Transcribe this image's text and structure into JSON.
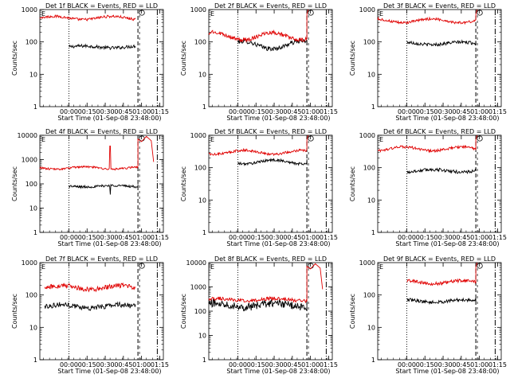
{
  "figure": {
    "xlabel": "Start Time (01-Sep-08 23:48:00)",
    "ylabel": "Counts/sec",
    "x_tick_labels": [
      "00:00",
      "00:15",
      "00:30",
      "00:45",
      "01:00",
      "01:15"
    ],
    "y_tick_labels": [
      "1",
      "10",
      "100",
      "1000",
      "10000"
    ]
  },
  "colors": {
    "events": "#000000",
    "lld": "#e00000",
    "background": "#ffffff"
  },
  "chart_data": [
    {
      "type": "line",
      "title": "Det 1f BLACK = Events, RED = LLD",
      "xlabel": "Start Time (01-Sep-08 23:48:00)",
      "ylabel": "Counts/sec",
      "xlim_minutes": [
        -12,
        90
      ],
      "ylim": [
        1,
        1000
      ],
      "y_scale": "log",
      "x_tick_minutes": [
        12,
        27,
        42,
        57,
        72,
        87
      ],
      "markers_minutes": {
        "dotted": 12,
        "dashed": 69,
        "dashdot": 85
      },
      "series": [
        {
          "name": "Events",
          "x_start": 12,
          "x_end": 67,
          "level": 70,
          "noise": 0.05,
          "wave": 0.03
        },
        {
          "name": "LLD",
          "x_start": -12,
          "x_end": 67,
          "level": 550,
          "noise": 0.04,
          "wave": 0.05
        }
      ],
      "annotations": {
        "after_dashed": false,
        "spike_minute": null
      }
    },
    {
      "type": "line",
      "title": "Det 2f BLACK = Events, RED = LLD",
      "xlabel": "Start Time (01-Sep-08 23:48:00)",
      "ylabel": "Counts/sec",
      "xlim_minutes": [
        -12,
        90
      ],
      "ylim": [
        1,
        1000
      ],
      "y_scale": "log",
      "x_tick_minutes": [
        12,
        27,
        42,
        57,
        72,
        87
      ],
      "markers_minutes": {
        "dotted": 12,
        "dashed": 69,
        "dashdot": 85
      },
      "series": [
        {
          "name": "Events",
          "x_start": 12,
          "x_end": 69,
          "level": 80,
          "noise": 0.07,
          "wave": 0.12
        },
        {
          "name": "LLD",
          "x_start": -12,
          "x_end": 69,
          "level": 150,
          "noise": 0.06,
          "wave": 0.12
        }
      ],
      "annotations": {
        "after_dashed": true,
        "spike_minute": null
      }
    },
    {
      "type": "line",
      "title": "Det 3f BLACK = Events, RED = LLD",
      "xlabel": "Start Time (01-Sep-08 23:48:00)",
      "ylabel": "Counts/sec",
      "xlim_minutes": [
        -12,
        90
      ],
      "ylim": [
        1,
        1000
      ],
      "y_scale": "log",
      "x_tick_minutes": [
        12,
        27,
        42,
        57,
        72,
        87
      ],
      "markers_minutes": {
        "dotted": 12,
        "dashed": 69,
        "dashdot": 85
      },
      "series": [
        {
          "name": "Events",
          "x_start": 12,
          "x_end": 69,
          "level": 90,
          "noise": 0.05,
          "wave": 0.04
        },
        {
          "name": "LLD",
          "x_start": -12,
          "x_end": 69,
          "level": 450,
          "noise": 0.04,
          "wave": 0.06
        }
      ],
      "annotations": {
        "after_dashed": true,
        "spike_minute": null
      }
    },
    {
      "type": "line",
      "title": "Det 4f BLACK = Events, RED = LLD",
      "xlabel": "Start Time (01-Sep-08 23:48:00)",
      "ylabel": "Counts/sec",
      "xlim_minutes": [
        -12,
        90
      ],
      "ylim": [
        1,
        10000
      ],
      "y_scale": "log",
      "x_tick_minutes": [
        12,
        27,
        42,
        57,
        72,
        87
      ],
      "markers_minutes": {
        "dotted": 12,
        "dashed": 69,
        "dashdot": 85
      },
      "series": [
        {
          "name": "Events",
          "x_start": 12,
          "x_end": 69,
          "level": 80,
          "noise": 0.05,
          "wave": 0.03
        },
        {
          "name": "LLD",
          "x_start": -12,
          "x_end": 69,
          "level": 450,
          "noise": 0.04,
          "wave": 0.05
        }
      ],
      "annotations": {
        "after_dashed": true,
        "spike_minute": 46
      }
    },
    {
      "type": "line",
      "title": "Det 5f BLACK = Events, RED = LLD",
      "xlabel": "Start Time (01-Sep-08 23:48:00)",
      "ylabel": "Counts/sec",
      "xlim_minutes": [
        -12,
        90
      ],
      "ylim": [
        1,
        1000
      ],
      "y_scale": "log",
      "x_tick_minutes": [
        12,
        27,
        42,
        57,
        72,
        87
      ],
      "markers_minutes": {
        "dotted": 12,
        "dashed": 69,
        "dashdot": 85
      },
      "series": [
        {
          "name": "Events",
          "x_start": 12,
          "x_end": 69,
          "level": 150,
          "noise": 0.04,
          "wave": 0.06
        },
        {
          "name": "LLD",
          "x_start": -12,
          "x_end": 69,
          "level": 300,
          "noise": 0.04,
          "wave": 0.06
        }
      ],
      "annotations": {
        "after_dashed": true,
        "spike_minute": null
      }
    },
    {
      "type": "line",
      "title": "Det 6f BLACK = Events, RED = LLD",
      "xlabel": "Start Time (01-Sep-08 23:48:00)",
      "ylabel": "Counts/sec",
      "xlim_minutes": [
        -12,
        90
      ],
      "ylim": [
        1,
        1000
      ],
      "y_scale": "log",
      "x_tick_minutes": [
        12,
        27,
        42,
        57,
        72,
        87
      ],
      "markers_minutes": {
        "dotted": 12,
        "dashed": 69,
        "dashdot": 85
      },
      "series": [
        {
          "name": "Events",
          "x_start": 12,
          "x_end": 69,
          "level": 80,
          "noise": 0.05,
          "wave": 0.04
        },
        {
          "name": "LLD",
          "x_start": -12,
          "x_end": 69,
          "level": 380,
          "noise": 0.04,
          "wave": 0.06
        }
      ],
      "annotations": {
        "after_dashed": true,
        "spike_minute": null
      }
    },
    {
      "type": "line",
      "title": "Det 7f BLACK = Events, RED = LLD",
      "xlabel": "Start Time (01-Sep-08 23:48:00)",
      "ylabel": "Counts/sec",
      "xlim_minutes": [
        -12,
        90
      ],
      "ylim": [
        1,
        1000
      ],
      "y_scale": "log",
      "x_tick_minutes": [
        12,
        27,
        42,
        57,
        72,
        87
      ],
      "markers_minutes": {
        "dotted": 12,
        "dashed": 69,
        "dashdot": 85
      },
      "series": [
        {
          "name": "Events",
          "x_start": -8,
          "x_end": 67,
          "level": 45,
          "noise": 0.08,
          "wave": 0.05
        },
        {
          "name": "LLD",
          "x_start": -8,
          "x_end": 67,
          "level": 170,
          "noise": 0.07,
          "wave": 0.06
        }
      ],
      "annotations": {
        "after_dashed": false,
        "spike_minute": null
      }
    },
    {
      "type": "line",
      "title": "Det 8f BLACK = Events, RED = LLD",
      "xlabel": "Start Time (01-Sep-08 23:48:00)",
      "ylabel": "Counts/sec",
      "xlim_minutes": [
        -12,
        90
      ],
      "ylim": [
        1,
        10000
      ],
      "y_scale": "log",
      "x_tick_minutes": [
        12,
        27,
        42,
        57,
        72,
        87
      ],
      "markers_minutes": {
        "dotted": 12,
        "dashed": 69,
        "dashdot": 85
      },
      "series": [
        {
          "name": "Events",
          "x_start": -12,
          "x_end": 69,
          "level": 180,
          "noise": 0.16,
          "wave": 0.08
        },
        {
          "name": "LLD",
          "x_start": -12,
          "x_end": 69,
          "level": 300,
          "noise": 0.07,
          "wave": 0.05
        }
      ],
      "annotations": {
        "after_dashed": true,
        "spike_minute": null
      }
    },
    {
      "type": "line",
      "title": "Det 9f BLACK = Events, RED = LLD",
      "xlabel": "Start Time (01-Sep-08 23:48:00)",
      "ylabel": "Counts/sec",
      "xlim_minutes": [
        -12,
        90
      ],
      "ylim": [
        1,
        1000
      ],
      "y_scale": "log",
      "x_tick_minutes": [
        12,
        27,
        42,
        57,
        72,
        87
      ],
      "markers_minutes": {
        "dotted": 12,
        "dashed": 69,
        "dashdot": 85
      },
      "series": [
        {
          "name": "Events",
          "x_start": 12,
          "x_end": 69,
          "level": 65,
          "noise": 0.05,
          "wave": 0.04
        },
        {
          "name": "LLD",
          "x_start": 12,
          "x_end": 69,
          "level": 250,
          "noise": 0.05,
          "wave": 0.05
        }
      ],
      "annotations": {
        "after_dashed": true,
        "spike_minute": null
      }
    }
  ]
}
